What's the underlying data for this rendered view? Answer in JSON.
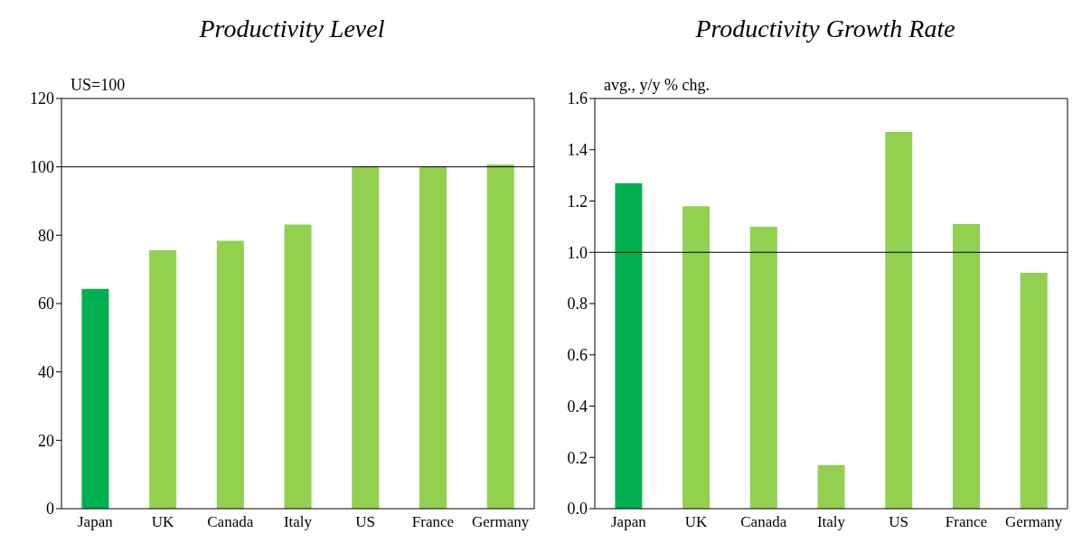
{
  "chart_data": [
    {
      "type": "bar",
      "title": "Productivity Level",
      "ylabel": "US=100",
      "categories": [
        "Japan",
        "UK",
        "Canada",
        "Italy",
        "US",
        "France",
        "Germany"
      ],
      "values": [
        64.3,
        75.6,
        78.4,
        83.1,
        100,
        100,
        100.7
      ],
      "colors": [
        "#00b050",
        "#92d050",
        "#92d050",
        "#92d050",
        "#92d050",
        "#92d050",
        "#92d050"
      ],
      "ylim": [
        0,
        120
      ],
      "yticks": [
        0,
        20,
        40,
        60,
        80,
        100,
        120
      ],
      "ref_lines": [
        {
          "axis": "y",
          "value": 100,
          "color": "#000000"
        }
      ]
    },
    {
      "type": "bar",
      "title": "Productivity Growth Rate",
      "ylabel": "avg., y/y % chg.",
      "categories": [
        "Japan",
        "UK",
        "Canada",
        "Italy",
        "US",
        "France",
        "Germany"
      ],
      "values": [
        1.27,
        1.18,
        1.1,
        0.17,
        1.47,
        1.11,
        0.92
      ],
      "colors": [
        "#00b050",
        "#92d050",
        "#92d050",
        "#92d050",
        "#92d050",
        "#92d050",
        "#92d050"
      ],
      "ylim": [
        0,
        1.6
      ],
      "yticks": [
        {
          "value": 0,
          "label": "0.0"
        },
        {
          "value": 0.2,
          "label": "0.2"
        },
        {
          "value": 0.4,
          "label": "0.4"
        },
        {
          "value": 0.6,
          "label": "0.6"
        },
        {
          "value": 0.8,
          "label": "0.8"
        },
        {
          "value": 1,
          "label": "1.0"
        },
        {
          "value": 1.2,
          "label": "1.2"
        },
        {
          "value": 1.4,
          "label": "1.4"
        },
        {
          "value": 1.6,
          "label": "1.6"
        }
      ],
      "ref_lines": [
        {
          "axis": "y",
          "value": 1,
          "color": "#000000"
        }
      ]
    }
  ]
}
